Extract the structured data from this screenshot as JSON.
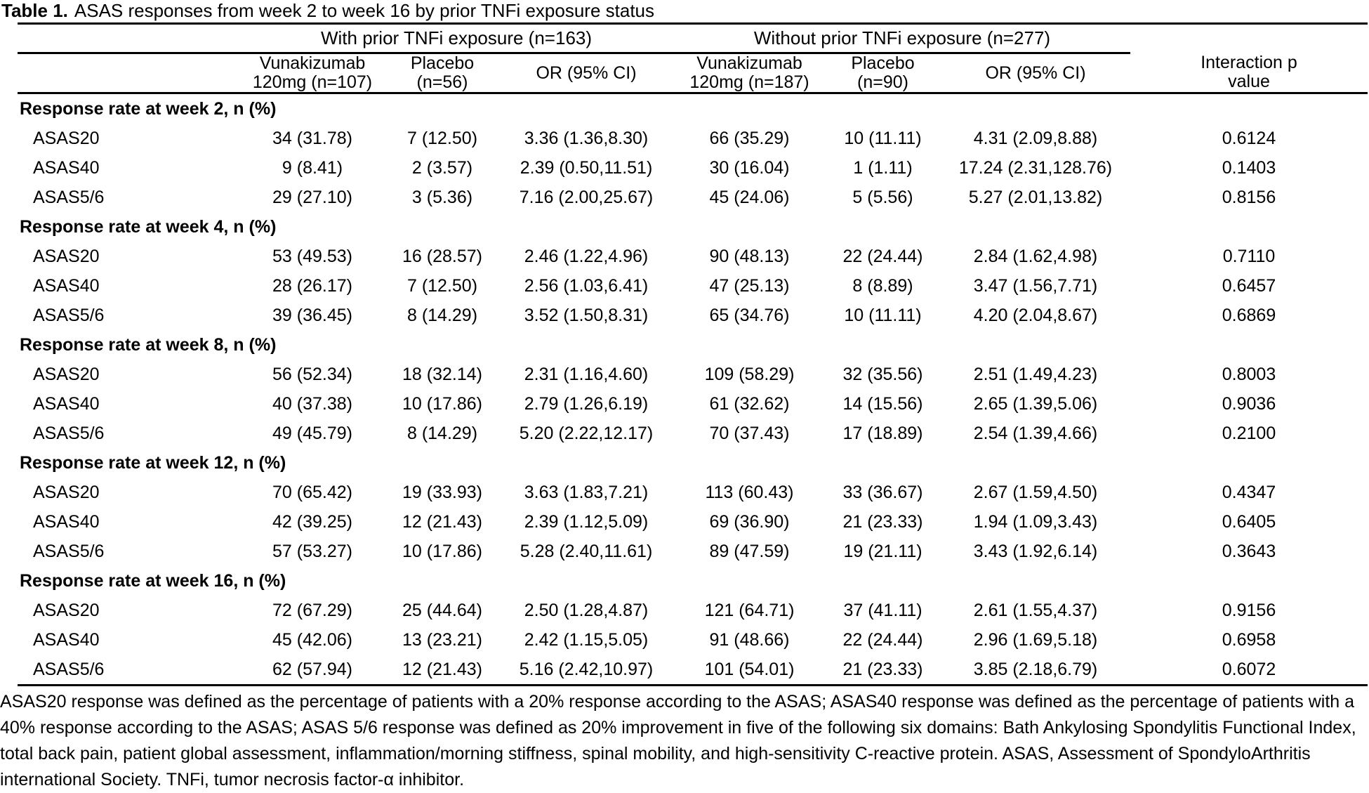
{
  "title": {
    "label": "Table 1.",
    "caption": "ASAS responses from week 2 to week 16 by prior TNFi exposure status"
  },
  "table": {
    "groups": [
      {
        "label": "With prior TNFi exposure (n=163)"
      },
      {
        "label": "Without prior TNFi exposure (n=277)"
      }
    ],
    "columns": [
      {
        "line1": "Vunakizumab",
        "line2": "120mg (n=107)"
      },
      {
        "line1": "Placebo",
        "line2": "(n=56)"
      },
      {
        "line1": "OR (95% CI)",
        "line2": ""
      },
      {
        "line1": "Vunakizumab",
        "line2": "120mg (n=187)"
      },
      {
        "line1": "Placebo",
        "line2": "(n=90)"
      },
      {
        "line1": "OR (95% CI)",
        "line2": ""
      },
      {
        "line1": "Interaction p",
        "line2": "value"
      }
    ],
    "sections": [
      {
        "label": "Response rate at week 2, n (%)",
        "rows": [
          {
            "label": "ASAS20",
            "values": [
              "34 (31.78)",
              "7 (12.50)",
              "3.36 (1.36,8.30)",
              "66 (35.29)",
              "10 (11.11)",
              "4.31 (2.09,8.88)",
              "0.6124"
            ]
          },
          {
            "label": "ASAS40",
            "values": [
              "9 (8.41)",
              "2 (3.57)",
              "2.39 (0.50,11.51)",
              "30 (16.04)",
              "1 (1.11)",
              "17.24 (2.31,128.76)",
              "0.1403"
            ]
          },
          {
            "label": "ASAS5/6",
            "values": [
              "29 (27.10)",
              "3 (5.36)",
              "7.16 (2.00,25.67)",
              "45 (24.06)",
              "5 (5.56)",
              "5.27 (2.01,13.82)",
              "0.8156"
            ]
          }
        ]
      },
      {
        "label": "Response rate at week 4, n (%)",
        "rows": [
          {
            "label": "ASAS20",
            "values": [
              "53 (49.53)",
              "16 (28.57)",
              "2.46 (1.22,4.96)",
              "90 (48.13)",
              "22 (24.44)",
              "2.84 (1.62,4.98)",
              "0.7110"
            ]
          },
          {
            "label": "ASAS40",
            "values": [
              "28 (26.17)",
              "7 (12.50)",
              "2.56 (1.03,6.41)",
              "47 (25.13)",
              "8 (8.89)",
              "3.47 (1.56,7.71)",
              "0.6457"
            ]
          },
          {
            "label": "ASAS5/6",
            "values": [
              "39 (36.45)",
              "8 (14.29)",
              "3.52 (1.50,8.31)",
              "65 (34.76)",
              "10 (11.11)",
              "4.20 (2.04,8.67)",
              "0.6869"
            ]
          }
        ]
      },
      {
        "label": "Response rate at week 8, n (%)",
        "rows": [
          {
            "label": "ASAS20",
            "values": [
              "56 (52.34)",
              "18 (32.14)",
              "2.31 (1.16,4.60)",
              "109 (58.29)",
              "32 (35.56)",
              "2.51 (1.49,4.23)",
              "0.8003"
            ]
          },
          {
            "label": "ASAS40",
            "values": [
              "40 (37.38)",
              "10 (17.86)",
              "2.79 (1.26,6.19)",
              "61 (32.62)",
              "14 (15.56)",
              "2.65 (1.39,5.06)",
              "0.9036"
            ]
          },
          {
            "label": "ASAS5/6",
            "values": [
              "49 (45.79)",
              "8 (14.29)",
              "5.20 (2.22,12.17)",
              "70 (37.43)",
              "17 (18.89)",
              "2.54 (1.39,4.66)",
              "0.2100"
            ]
          }
        ]
      },
      {
        "label": "Response rate at week 12, n (%)",
        "rows": [
          {
            "label": "ASAS20",
            "values": [
              "70 (65.42)",
              "19 (33.93)",
              "3.63 (1.83,7.21)",
              "113 (60.43)",
              "33 (36.67)",
              "2.67 (1.59,4.50)",
              "0.4347"
            ]
          },
          {
            "label": "ASAS40",
            "values": [
              "42 (39.25)",
              "12 (21.43)",
              "2.39 (1.12,5.09)",
              "69 (36.90)",
              "21 (23.33)",
              "1.94 (1.09,3.43)",
              "0.6405"
            ]
          },
          {
            "label": "ASAS5/6",
            "values": [
              "57 (53.27)",
              "10 (17.86)",
              "5.28 (2.40,11.61)",
              "89 (47.59)",
              "19 (21.11)",
              "3.43 (1.92,6.14)",
              "0.3643"
            ]
          }
        ]
      },
      {
        "label": "Response rate at week 16, n (%)",
        "rows": [
          {
            "label": "ASAS20",
            "values": [
              "72 (67.29)",
              "25 (44.64)",
              "2.50 (1.28,4.87)",
              "121 (64.71)",
              "37 (41.11)",
              "2.61 (1.55,4.37)",
              "0.9156"
            ]
          },
          {
            "label": "ASAS40",
            "values": [
              "45 (42.06)",
              "13 (23.21)",
              "2.42 (1.15,5.05)",
              "91 (48.66)",
              "22 (24.44)",
              "2.96 (1.69,5.18)",
              "0.6958"
            ]
          },
          {
            "label": "ASAS5/6",
            "values": [
              "62 (57.94)",
              "12 (21.43)",
              "5.16 (2.42,10.97)",
              "101 (54.01)",
              "21 (23.33)",
              "3.85 (2.18,6.79)",
              "0.6072"
            ]
          }
        ]
      }
    ]
  },
  "footnote": "ASAS20 response was defined as the percentage of patients with a 20% response according to the ASAS; ASAS40 response was defined as the percentage of patients with a 40% response according to the ASAS; ASAS 5/6 response was defined as 20% improvement in five of the following six domains: Bath Ankylosing Spondylitis Functional Index, total back pain, patient global assessment, inflammation/morning stiffness, spinal mobility, and high-sensitivity C-reactive protein. ASAS, Assessment of SpondyloArthritis international Society. TNFi, tumor necrosis factor-α inhibitor."
}
